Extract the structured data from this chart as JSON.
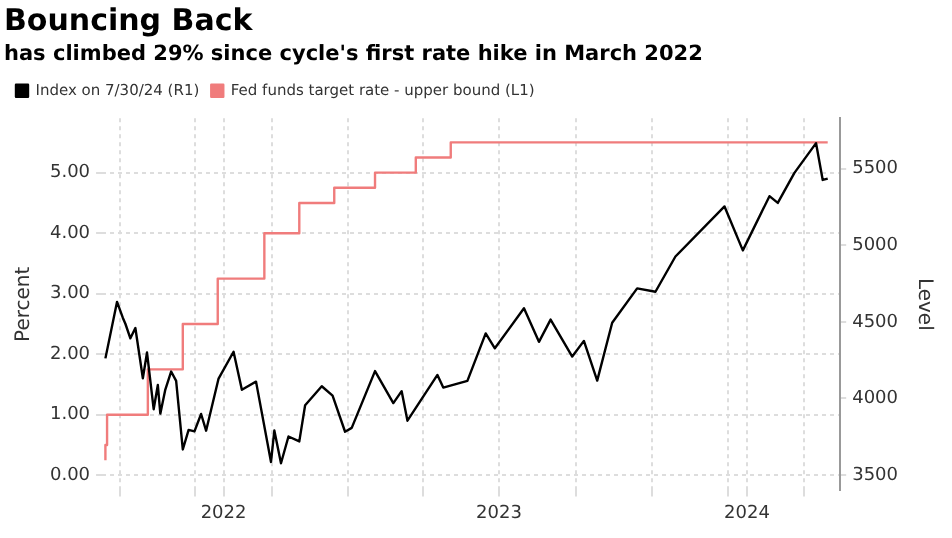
{
  "chart_data": {
    "type": "line",
    "title": "Bouncing Back",
    "subtitle": "has climbed 29% since cycle's first rate hike in March 2022",
    "ylabel": "Percent",
    "y2label": "Level",
    "xlim": [
      "2022-03-11",
      "2024-08-14"
    ],
    "xticks": [
      {
        "value": "2022-04-01",
        "label": null
      },
      {
        "value": "2022-07-01",
        "label": null
      },
      {
        "value": "2022-08-04",
        "label": "2022"
      },
      {
        "value": "2022-10-01",
        "label": null
      },
      {
        "value": "2023-01-01",
        "label": null
      },
      {
        "value": "2023-04-01",
        "label": null
      },
      {
        "value": "2023-07-01",
        "label": "2023"
      },
      {
        "value": "2023-10-01",
        "label": null
      },
      {
        "value": "2024-01-01",
        "label": null
      },
      {
        "value": "2024-04-01",
        "label": null
      },
      {
        "value": "2024-04-24",
        "label": "2024"
      },
      {
        "value": "2024-07-01",
        "label": null
      }
    ],
    "ylim": [
      -0.25,
      5.9
    ],
    "yticks": [
      {
        "value": 0,
        "label": "0.00"
      },
      {
        "value": 1,
        "label": "1.00"
      },
      {
        "value": 2,
        "label": "2.00"
      },
      {
        "value": 3,
        "label": "3.00"
      },
      {
        "value": 4,
        "label": "4.00"
      },
      {
        "value": 5,
        "label": "5.00"
      }
    ],
    "y2lim": [
      3400,
      5830
    ],
    "y2ticks": [
      3500,
      4000,
      4500,
      5000,
      5500
    ],
    "grid": true,
    "legend": "top left",
    "marker": "none",
    "series": [
      {
        "name": "Index on 7/30/24 (R1)",
        "type": "line",
        "axis": "y2",
        "color": "#000000",
        "x": [
          "2022-03-15",
          "2022-03-29",
          "2022-04-05",
          "2022-04-08",
          "2022-04-14",
          "2022-04-20",
          "2022-04-29",
          "2022-05-04",
          "2022-05-12",
          "2022-05-17",
          "2022-05-20",
          "2022-05-26",
          "2022-06-02",
          "2022-06-08",
          "2022-06-16",
          "2022-06-23",
          "2022-06-30",
          "2022-07-08",
          "2022-07-14",
          "2022-07-29",
          "2022-08-16",
          "2022-08-26",
          "2022-09-12",
          "2022-09-30",
          "2022-10-04",
          "2022-10-12",
          "2022-10-21",
          "2022-11-03",
          "2022-11-10",
          "2022-11-30",
          "2022-12-13",
          "2022-12-28",
          "2023-01-05",
          "2023-02-02",
          "2023-02-24",
          "2023-03-06",
          "2023-03-13",
          "2023-04-18",
          "2023-04-25",
          "2023-05-24",
          "2023-06-15",
          "2023-06-26",
          "2023-07-31",
          "2023-08-18",
          "2023-09-01",
          "2023-09-27",
          "2023-10-11",
          "2023-10-27",
          "2023-11-14",
          "2023-12-14",
          "2024-01-05",
          "2024-01-29",
          "2024-03-28",
          "2024-04-19",
          "2024-05-21",
          "2024-05-31",
          "2024-06-20",
          "2024-07-16",
          "2024-07-24",
          "2024-07-30"
        ],
        "values": [
          4262,
          4631,
          4526,
          4488,
          4393,
          4460,
          4132,
          4300,
          3930,
          4088,
          3901,
          4058,
          4176,
          4115,
          3667,
          3795,
          3785,
          3899,
          3790,
          4130,
          4305,
          4057,
          4110,
          3586,
          3791,
          3577,
          3752,
          3720,
          3956,
          4080,
          4019,
          3783,
          3808,
          4179,
          3970,
          4048,
          3855,
          4154,
          4071,
          4115,
          4425,
          4328,
          4589,
          4370,
          4515,
          4274,
          4376,
          4117,
          4495,
          4719,
          4697,
          4927,
          5254,
          4967,
          5321,
          5277,
          5473,
          5667,
          5427,
          5436
        ]
      },
      {
        "name": "Fed funds target rate - upper bound (L1)",
        "type": "step",
        "axis": "y",
        "color": "#f07c7c",
        "x": [
          "2022-03-15",
          "2022-03-17",
          "2022-05-05",
          "2022-06-16",
          "2022-07-28",
          "2022-09-22",
          "2022-11-03",
          "2022-12-15",
          "2023-02-02",
          "2023-03-23",
          "2023-05-04",
          "2023-07-27",
          "2024-07-30"
        ],
        "values": [
          0.25,
          0.5,
          1.0,
          1.75,
          2.5,
          3.25,
          4.0,
          4.5,
          4.75,
          5.0,
          5.25,
          5.5,
          5.5
        ]
      }
    ]
  }
}
